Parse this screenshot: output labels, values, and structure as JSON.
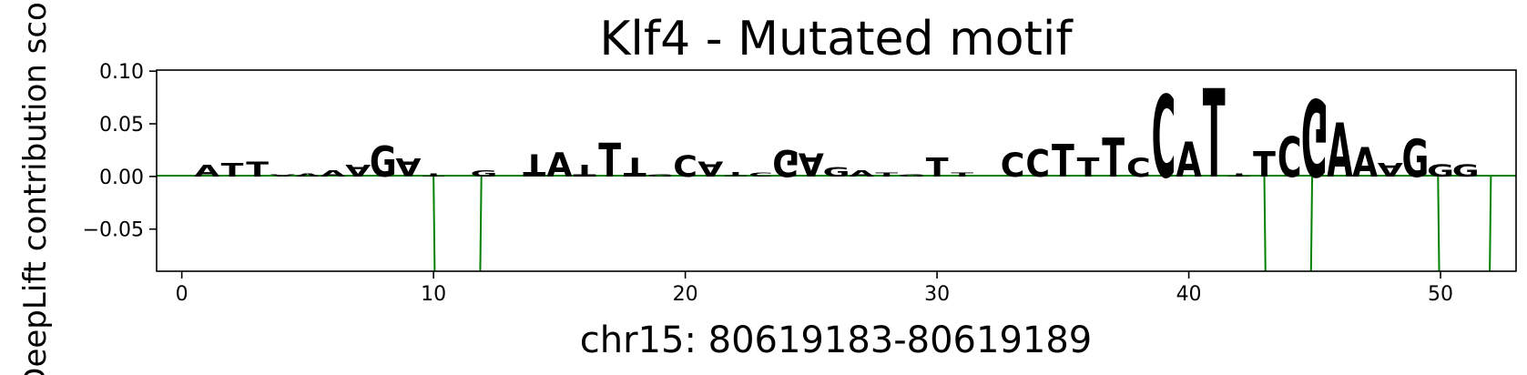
{
  "colors": {
    "A": "#008000",
    "C": "#0000ff",
    "G": "#ffa500",
    "T": "#ff0000"
  },
  "chart_data": {
    "type": "sequence-logo",
    "title": "Klf4 - Mutated motif",
    "xlabel": "chr15: 80619183-80619189",
    "ylabel": "DeepLift contribution scores",
    "xlim": [
      -1,
      53
    ],
    "ylim": [
      -0.09,
      0.101
    ],
    "xticks": [
      0,
      10,
      20,
      30,
      40,
      50
    ],
    "yticks": [
      -0.05,
      0.0,
      0.05,
      0.1
    ],
    "ytick_labels": [
      "−0.05",
      "0.00",
      "0.05",
      "0.10"
    ],
    "bases": [
      {
        "pos": 1,
        "base": "A",
        "value": 0.011
      },
      {
        "pos": 2,
        "base": "T",
        "value": 0.013
      },
      {
        "pos": 3,
        "base": "T",
        "value": 0.014
      },
      {
        "pos": 4,
        "base": "A",
        "value": -0.002
      },
      {
        "pos": 5,
        "base": "A",
        "value": 0.003
      },
      {
        "pos": 6,
        "base": "A",
        "value": 0.006
      },
      {
        "pos": 7,
        "base": "A",
        "value": -0.011
      },
      {
        "pos": 8,
        "base": "G",
        "value": 0.029
      },
      {
        "pos": 9,
        "base": "A",
        "value": -0.017
      },
      {
        "pos": 10,
        "base": "T",
        "value": -0.003
      },
      {
        "pos": 12,
        "base": "G",
        "value": 0.006
      },
      {
        "pos": 14,
        "base": "T",
        "value": -0.021
      },
      {
        "pos": 15,
        "base": "A",
        "value": 0.023
      },
      {
        "pos": 16,
        "base": "T",
        "value": -0.011
      },
      {
        "pos": 17,
        "base": "T",
        "value": 0.032
      },
      {
        "pos": 18,
        "base": "T",
        "value": -0.018
      },
      {
        "pos": 19,
        "base": "G",
        "value": 0.002
      },
      {
        "pos": 20,
        "base": "C",
        "value": 0.02
      },
      {
        "pos": 21,
        "base": "A",
        "value": -0.014
      },
      {
        "pos": 22,
        "base": "T",
        "value": -0.004
      },
      {
        "pos": 23,
        "base": "C",
        "value": 0.004
      },
      {
        "pos": 24,
        "base": "G",
        "value": -0.025
      },
      {
        "pos": 25,
        "base": "A",
        "value": -0.022
      },
      {
        "pos": 26,
        "base": "G",
        "value": 0.009
      },
      {
        "pos": 27,
        "base": "A",
        "value": 0.006
      },
      {
        "pos": 28,
        "base": "T",
        "value": 0.004
      },
      {
        "pos": 29,
        "base": "G",
        "value": 0.002
      },
      {
        "pos": 30,
        "base": "T",
        "value": 0.018
      },
      {
        "pos": 31,
        "base": "T",
        "value": 0.004
      },
      {
        "pos": 33,
        "base": "C",
        "value": 0.023
      },
      {
        "pos": 34,
        "base": "C",
        "value": 0.026
      },
      {
        "pos": 35,
        "base": "T",
        "value": 0.031
      },
      {
        "pos": 36,
        "base": "T",
        "value": 0.018
      },
      {
        "pos": 37,
        "base": "T",
        "value": 0.037
      },
      {
        "pos": 38,
        "base": "C",
        "value": -0.018
      },
      {
        "pos": 39,
        "base": "C",
        "value": 0.078
      },
      {
        "pos": 40,
        "base": "A",
        "value": 0.033
      },
      {
        "pos": 41,
        "base": "T",
        "value": 0.084
      },
      {
        "pos": 42,
        "base": "T",
        "value": -0.003
      },
      {
        "pos": 43,
        "base": "T",
        "value": 0.024
      },
      {
        "pos": 44,
        "base": "C",
        "value": 0.038
      },
      {
        "pos": 45,
        "base": "G",
        "value": -0.073
      },
      {
        "pos": 46,
        "base": "A",
        "value": 0.051
      },
      {
        "pos": 47,
        "base": "A",
        "value": 0.028
      },
      {
        "pos": 48,
        "base": "A",
        "value": -0.013
      },
      {
        "pos": 49,
        "base": "G",
        "value": 0.036
      },
      {
        "pos": 50,
        "base": "G",
        "value": 0.012
      },
      {
        "pos": 51,
        "base": "G",
        "value": 0.012
      }
    ],
    "lines": [
      {
        "color": "#008000",
        "x": [
          10,
          10.1
        ],
        "y": [
          0,
          -0.2
        ]
      },
      {
        "color": "#008000",
        "x": [
          11.8,
          11.9
        ],
        "y": [
          -0.2,
          0
        ]
      },
      {
        "color": "#008000",
        "x": [
          43,
          43.1
        ],
        "y": [
          0,
          -0.2
        ]
      },
      {
        "color": "#008000",
        "x": [
          44.8,
          44.9
        ],
        "y": [
          -0.2,
          0
        ]
      },
      {
        "color": "#008000",
        "x": [
          49.9,
          50.0
        ],
        "y": [
          0,
          -0.2
        ]
      },
      {
        "color": "#008000",
        "x": [
          51.9,
          52.0
        ],
        "y": [
          -0.2,
          0
        ]
      }
    ]
  }
}
